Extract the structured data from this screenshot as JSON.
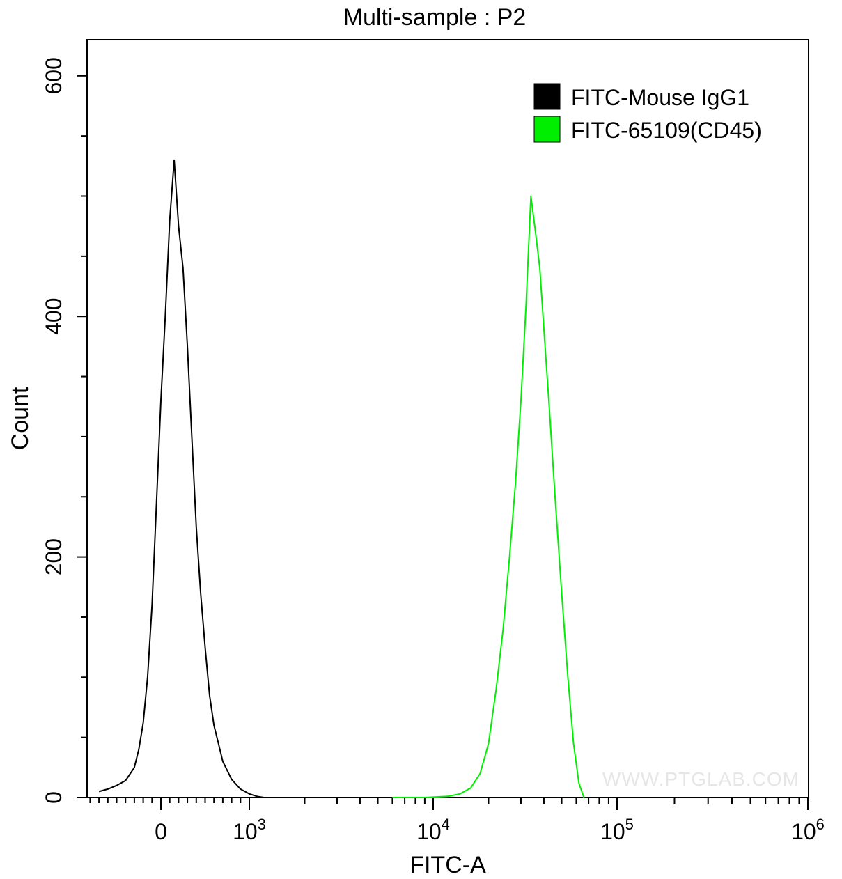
{
  "chart_data": {
    "type": "line",
    "title": "Multi-sample : P2",
    "xlabel": "FITC-A",
    "ylabel": "Count",
    "x_scale": "biexponential",
    "ylim": [
      0,
      630
    ],
    "y_ticks": [
      {
        "value": 0,
        "label": "0"
      },
      {
        "value": 200,
        "label": "200"
      },
      {
        "value": 400,
        "label": "400"
      },
      {
        "value": 600,
        "label": "600"
      }
    ],
    "x_ticks": [
      {
        "value": 0,
        "label": "0",
        "base": "",
        "exp": ""
      },
      {
        "value": 1000,
        "label": "10^3",
        "base": "10",
        "exp": "3"
      },
      {
        "value": 10000,
        "label": "10^4",
        "base": "10",
        "exp": "4"
      },
      {
        "value": 100000,
        "label": "10^5",
        "base": "10",
        "exp": "5"
      },
      {
        "value": 1000000,
        "label": "10^6",
        "base": "10",
        "exp": "6"
      }
    ],
    "grid": false,
    "legend_position": "top-right",
    "watermark": "WWW.PTGLAB.COM",
    "series": [
      {
        "name": "FITC-Mouse IgG1",
        "color": "#000000",
        "x": [
          -700,
          -600,
          -500,
          -400,
          -300,
          -250,
          -200,
          -150,
          -100,
          -50,
          0,
          50,
          100,
          150,
          200,
          250,
          300,
          350,
          400,
          450,
          500,
          550,
          600,
          650,
          700,
          800,
          900,
          1000,
          1100,
          1200
        ],
        "y": [
          5,
          7,
          10,
          14,
          25,
          40,
          62,
          100,
          160,
          245,
          330,
          400,
          480,
          530,
          475,
          440,
          375,
          300,
          225,
          170,
          125,
          85,
          60,
          45,
          30,
          15,
          7,
          3,
          1,
          0
        ]
      },
      {
        "name": "FITC-65109(CD45)",
        "color": "#00ee00",
        "x": [
          6000,
          9000,
          12000,
          14000,
          16000,
          18000,
          20000,
          22000,
          24000,
          26000,
          28000,
          30000,
          32000,
          34000,
          36000,
          38000,
          40000,
          43000,
          46000,
          50000,
          54000,
          58000,
          62000,
          66000
        ],
        "y": [
          0,
          0,
          1,
          3,
          8,
          20,
          45,
          90,
          140,
          200,
          260,
          330,
          410,
          500,
          470,
          440,
          390,
          320,
          250,
          170,
          100,
          45,
          12,
          0
        ]
      }
    ]
  }
}
